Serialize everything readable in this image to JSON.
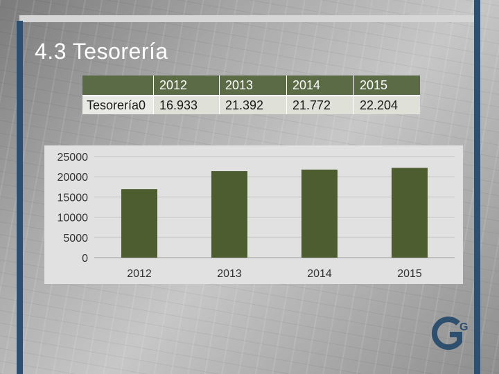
{
  "slide": {
    "title": "4.3 Tesorería"
  },
  "table": {
    "header": [
      "",
      "2012",
      "2013",
      "2014",
      "2015"
    ],
    "rows": [
      {
        "label": "Tesorería0",
        "values": [
          "16.933",
          "21.392",
          "21.772",
          "22.204"
        ]
      }
    ]
  },
  "logo_text": "G",
  "colors": {
    "accent_blue": "#2e4f6e",
    "table_header": "#5b6b45",
    "bar": "#4d5d2f",
    "chart_background": "#e1e1e1"
  },
  "chart_data": {
    "type": "bar",
    "categories": [
      "2012",
      "2013",
      "2014",
      "2015"
    ],
    "series": [
      {
        "values": [
          16933,
          21392,
          21772,
          22204
        ]
      }
    ],
    "ylim": [
      0,
      25000
    ],
    "yticks": [
      0,
      5000,
      10000,
      15000,
      20000,
      25000
    ],
    "grid": true,
    "legend": "none",
    "title": "",
    "xlabel": "",
    "ylabel": ""
  }
}
